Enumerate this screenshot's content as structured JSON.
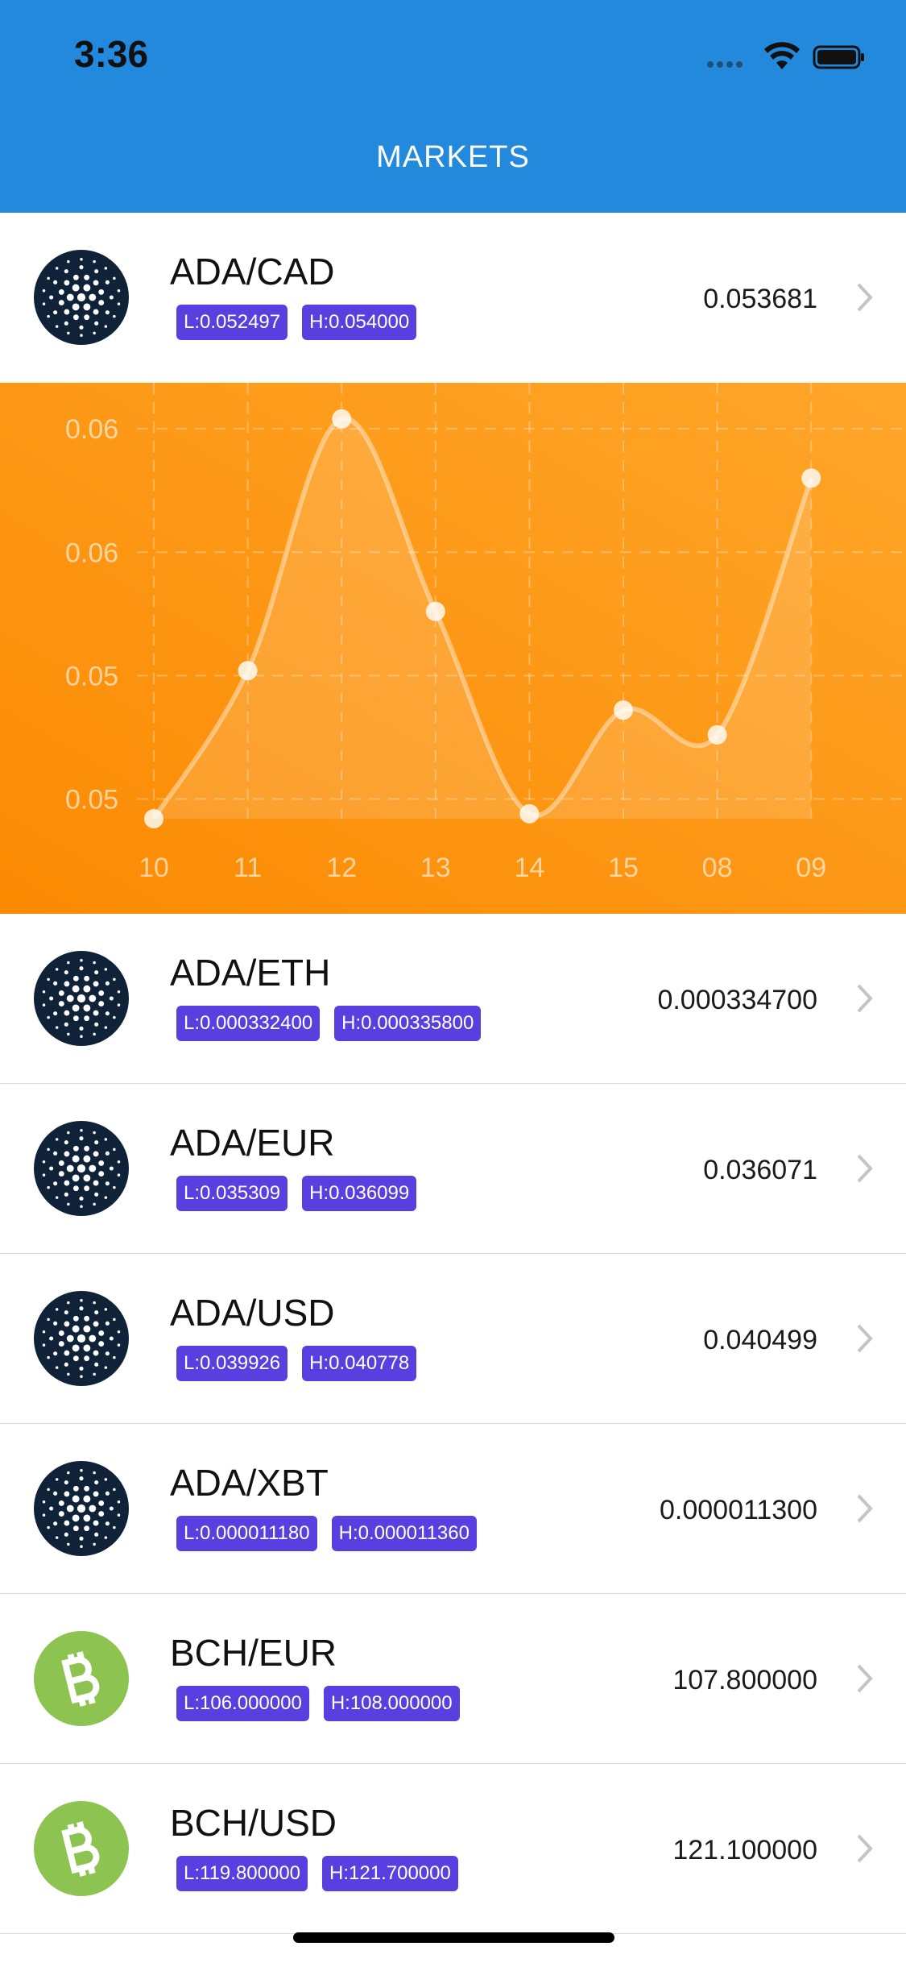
{
  "status_bar": {
    "time": "3:36"
  },
  "header": {
    "title": "MARKETS"
  },
  "markets": [
    {
      "pair": "ADA/CAD",
      "low": "L:0.052497",
      "high": "H:0.054000",
      "price": "0.053681",
      "icon_color": "#0f2237"
    },
    {
      "pair": "ADA/ETH",
      "low": "L:0.000332400",
      "high": "H:0.000335800",
      "price": "0.000334700",
      "icon_color": "#0f2237"
    },
    {
      "pair": "ADA/EUR",
      "low": "L:0.035309",
      "high": "H:0.036099",
      "price": "0.036071",
      "icon_color": "#0f2237"
    },
    {
      "pair": "ADA/USD",
      "low": "L:0.039926",
      "high": "H:0.040778",
      "price": "0.040499",
      "icon_color": "#0f2237"
    },
    {
      "pair": "ADA/XBT",
      "low": "L:0.000011180",
      "high": "H:0.000011360",
      "price": "0.000011300",
      "icon_color": "#0f2237"
    },
    {
      "pair": "BCH/EUR",
      "low": "L:106.000000",
      "high": "H:108.000000",
      "price": "107.800000",
      "icon_color": "#8dc351"
    },
    {
      "pair": "BCH/USD",
      "low": "L:119.800000",
      "high": "H:121.700000",
      "price": "121.100000",
      "icon_color": "#8dc351"
    }
  ],
  "chart_data": {
    "type": "line",
    "categories": [
      "10",
      "11",
      "12",
      "13",
      "14",
      "15",
      "08",
      "09"
    ],
    "values": [
      0.0496,
      0.0526,
      0.0577,
      0.0538,
      0.0497,
      0.0518,
      0.0513,
      0.0565
    ],
    "color": "#ffffff",
    "ylim": [
      0.0496,
      0.0584
    ],
    "yticks": [
      {
        "value": 0.0575,
        "label": "0.06"
      },
      {
        "value": 0.055,
        "label": "0.06"
      },
      {
        "value": 0.0525,
        "label": "0.05"
      },
      {
        "value": 0.05,
        "label": "0.05"
      }
    ],
    "grid": true
  }
}
